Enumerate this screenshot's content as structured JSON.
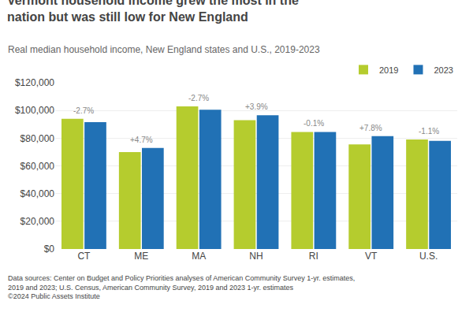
{
  "chart_data": {
    "type": "bar",
    "title": "Vermont household income grew the most in the nation but was still low for New England",
    "subtitle": "Real median household income, New England states and U.S., 2019-2023",
    "categories": [
      "CT",
      "ME",
      "MA",
      "NH",
      "RI",
      "VT",
      "U.S."
    ],
    "series": [
      {
        "name": "2019",
        "color": "#b5cc2e",
        "values": [
          94000,
          70000,
          103000,
          93000,
          84500,
          75500,
          79000
        ]
      },
      {
        "name": "2023",
        "color": "#2171b5",
        "values": [
          91500,
          73000,
          100500,
          96500,
          84400,
          81500,
          78100
        ]
      }
    ],
    "annotations": [
      {
        "category": "CT",
        "text": "-2.7%"
      },
      {
        "category": "ME",
        "text": "+4.7%"
      },
      {
        "category": "MA",
        "text": "-2.7%"
      },
      {
        "category": "NH",
        "text": "+3.9%"
      },
      {
        "category": "RI",
        "text": "-0.1%"
      },
      {
        "category": "VT",
        "text": "+7.8%"
      },
      {
        "category": "U.S.",
        "text": "-1.1%"
      }
    ],
    "footnote": [
      "Data sources: Center on Budget and Policy Priorities analyses of American Community Survey 1-yr. estimates,",
      "2019 and 2023; U.S. Census, American Community Survey, 2019 and 2023 1-yr. estimates",
      "©2024 Public Assets Institute"
    ],
    "ylim": [
      0,
      120000
    ],
    "yticks": [
      {
        "value": 0,
        "label": "$0"
      },
      {
        "value": 20000,
        "label": "$20,000"
      },
      {
        "value": 40000,
        "label": "$40,000"
      },
      {
        "value": 60000,
        "label": "$60,000"
      },
      {
        "value": 80000,
        "label": "$80,000"
      },
      {
        "value": 100000,
        "label": "$100,000"
      },
      {
        "value": 120000,
        "label": "$120,000"
      }
    ],
    "grid": true,
    "legend": "upper right"
  }
}
